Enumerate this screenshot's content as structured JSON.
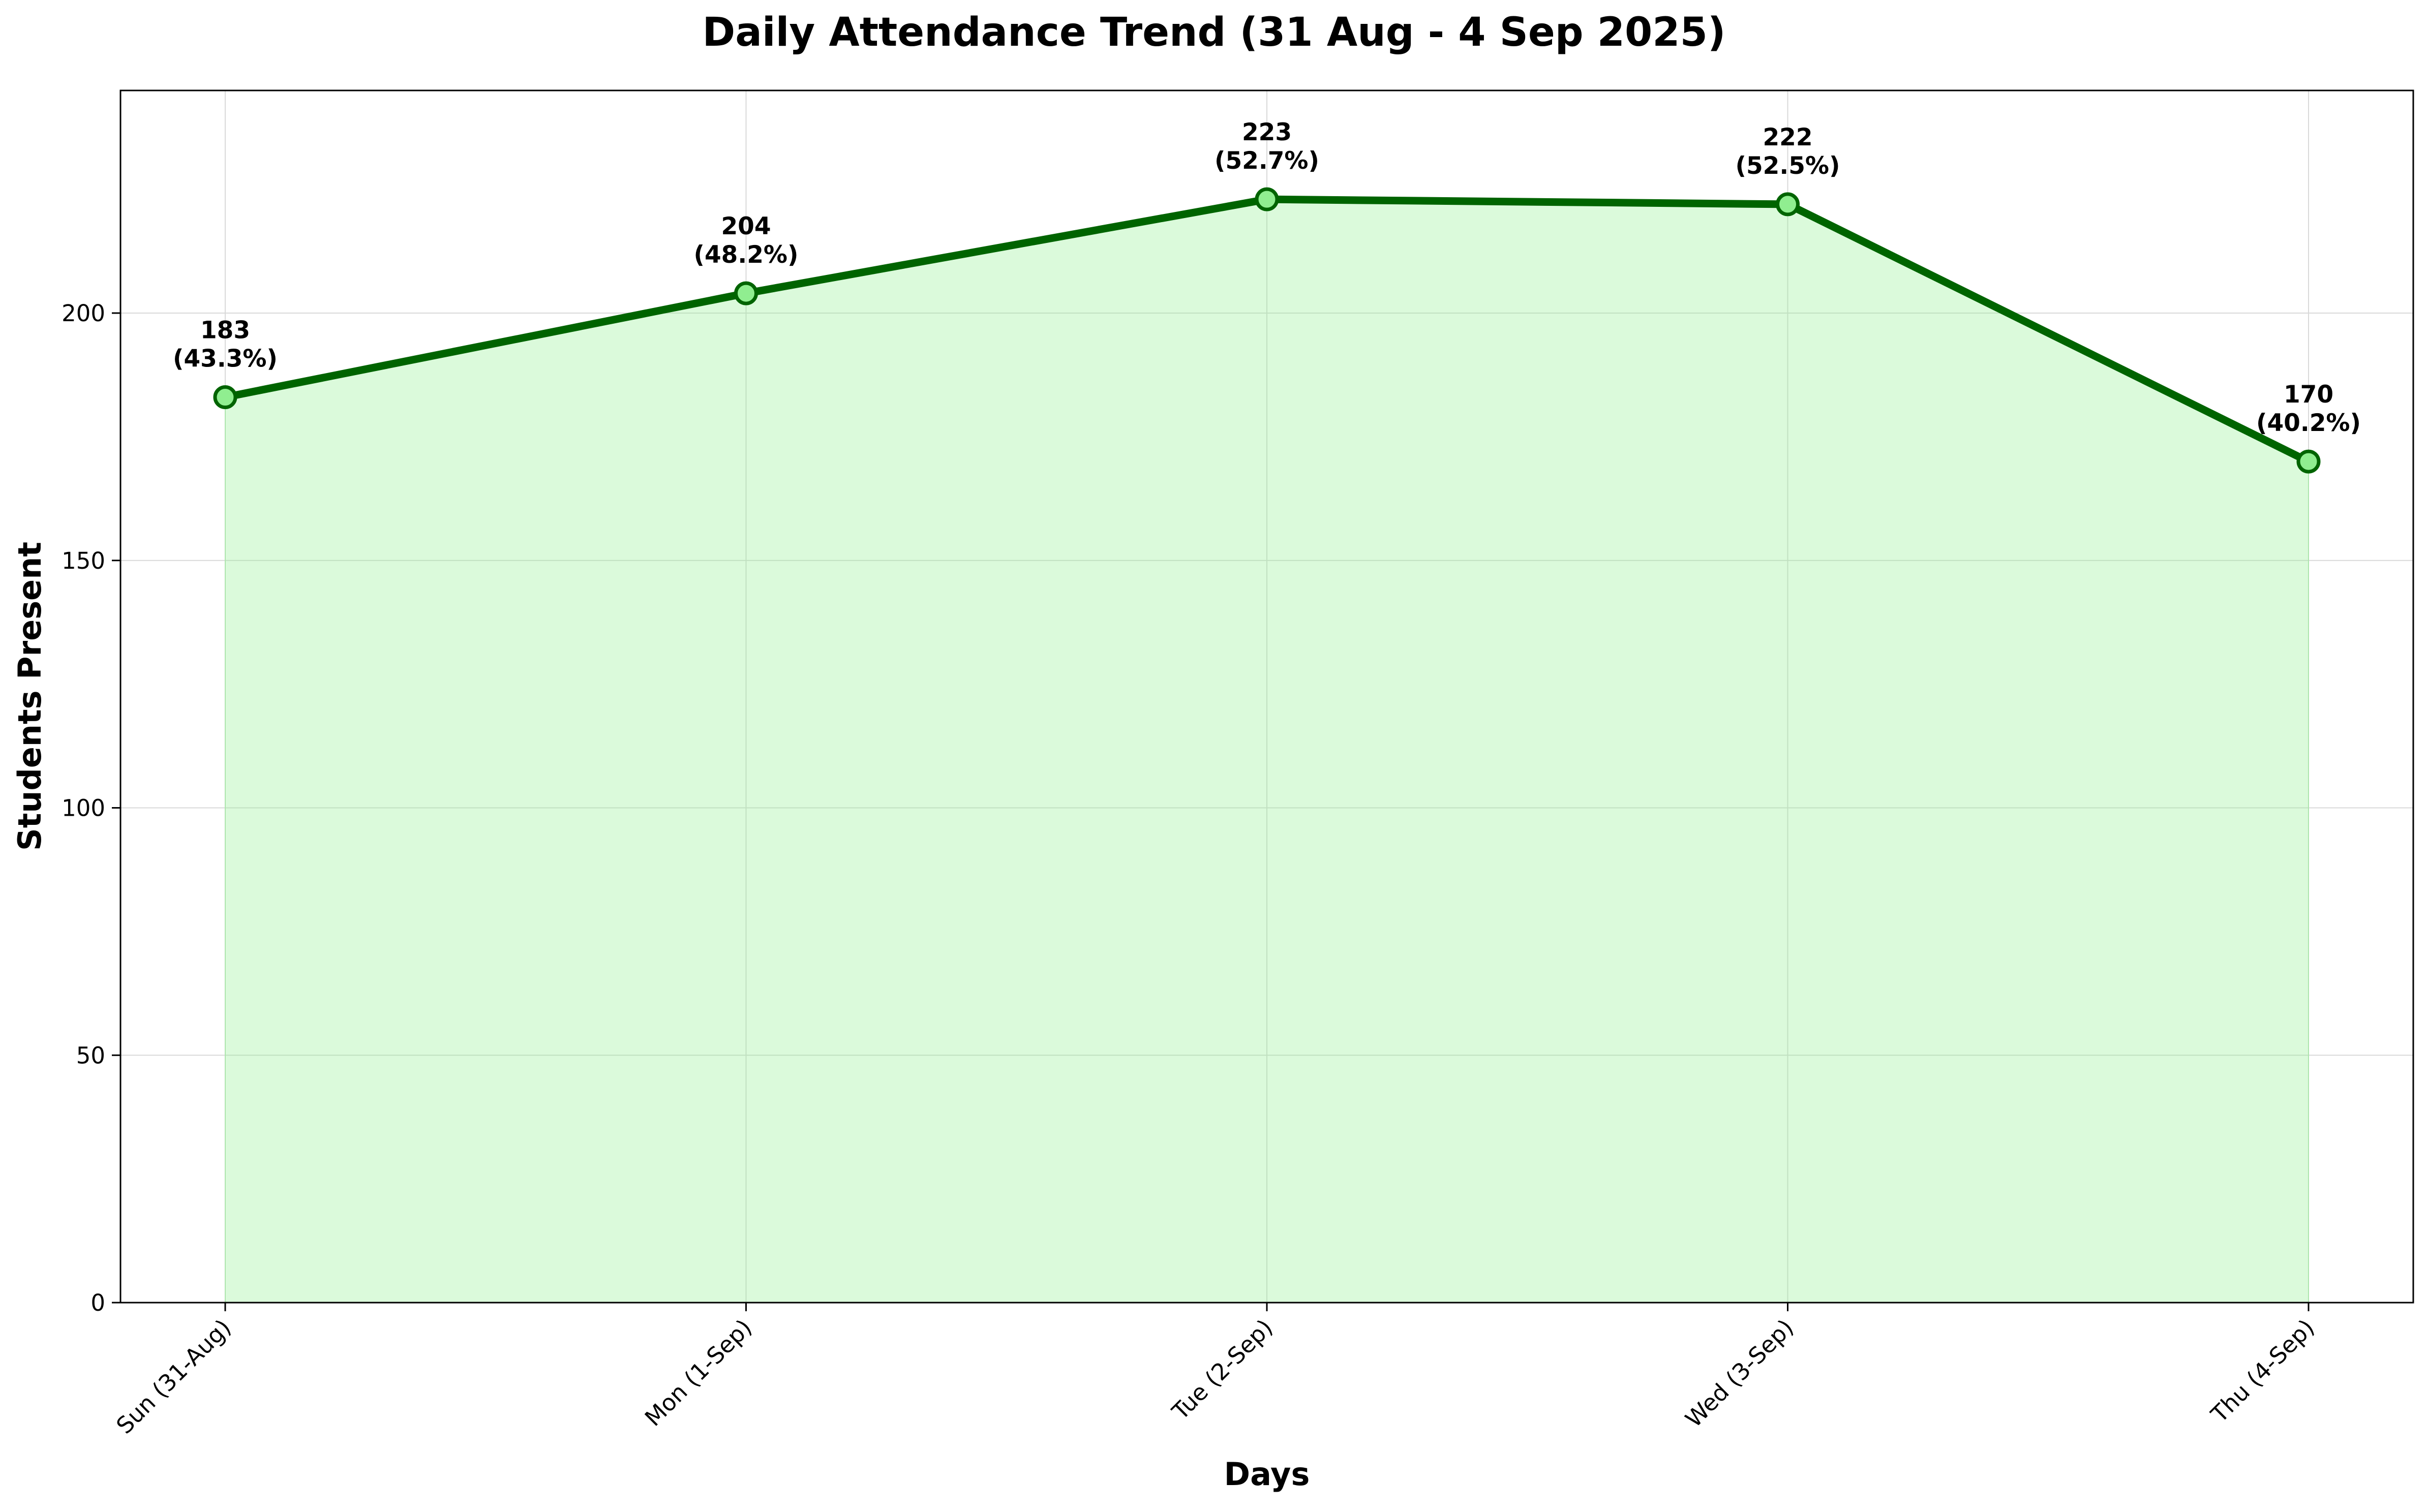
{
  "chart_data": {
    "type": "area",
    "title": "Daily Attendance Trend (31 Aug - 4 Sep 2025)",
    "xlabel": "Days",
    "ylabel": "Students Present",
    "categories": [
      "Sun (31-Aug)",
      "Mon (1-Sep)",
      "Tue (2-Sep)",
      "Wed (3-Sep)",
      "Thu (4-Sep)"
    ],
    "values": [
      183,
      204,
      223,
      222,
      170
    ],
    "value_labels": [
      "183",
      "204",
      "223",
      "222",
      "170"
    ],
    "percent_labels": [
      "(43.3%)",
      "(48.2%)",
      "(52.7%)",
      "(52.5%)",
      "(40.2%)"
    ],
    "ylim": [
      0,
      245
    ],
    "yticks": [
      0,
      50,
      100,
      150,
      200
    ],
    "ytick_labels": [
      "0",
      "50",
      "100",
      "150",
      "200"
    ],
    "grid": true,
    "legend": false,
    "colors": {
      "line": "#006400",
      "fill": "#90ee90",
      "marker_face": "#90ee90",
      "marker_edge": "#006400",
      "grid": "#d9d9d9"
    }
  }
}
